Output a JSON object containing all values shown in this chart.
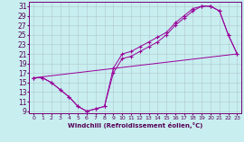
{
  "xlabel": "Windchill (Refroidissement éolien,°C)",
  "xlim": [
    -0.5,
    23.5
  ],
  "ylim": [
    8.5,
    32
  ],
  "yticks": [
    9,
    11,
    13,
    15,
    17,
    19,
    21,
    23,
    25,
    27,
    29,
    31
  ],
  "xticks": [
    0,
    1,
    2,
    3,
    4,
    5,
    6,
    7,
    8,
    9,
    10,
    11,
    12,
    13,
    14,
    15,
    16,
    17,
    18,
    19,
    20,
    21,
    22,
    23
  ],
  "bg_color": "#c8eef0",
  "line_color": "#990099",
  "grid_color": "#b0c8cc",
  "line1_x": [
    0,
    1,
    2,
    3,
    4,
    5,
    6,
    7,
    8,
    9,
    10,
    11,
    12,
    13,
    14,
    15,
    16,
    17,
    18,
    19,
    20,
    21,
    22,
    23
  ],
  "line1_y": [
    16,
    16,
    15,
    13.5,
    12,
    10,
    9,
    9.5,
    10,
    18,
    21,
    21.5,
    22.5,
    23.5,
    24.5,
    25.5,
    27.5,
    29,
    30.5,
    31,
    31,
    30,
    25,
    21
  ],
  "line2_x": [
    0,
    1,
    2,
    3,
    4,
    5,
    6,
    7,
    8,
    9,
    10,
    11,
    12,
    13,
    14,
    15,
    16,
    17,
    18,
    19,
    20,
    21,
    22,
    23
  ],
  "line2_y": [
    16,
    16,
    15,
    13.5,
    12,
    10,
    9,
    9.5,
    10,
    17,
    20,
    20.5,
    21.5,
    22.5,
    23.5,
    25,
    27,
    28.5,
    30,
    31,
    31,
    30,
    25,
    21
  ],
  "line3_x": [
    0,
    23
  ],
  "line3_y": [
    16,
    21
  ]
}
